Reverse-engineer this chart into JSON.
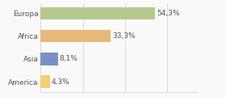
{
  "categories": [
    "Europa",
    "Africa",
    "Asia",
    "America"
  ],
  "values": [
    54.3,
    33.3,
    8.1,
    4.3
  ],
  "labels": [
    "54,3%",
    "33,3%",
    "8,1%",
    "4,3%"
  ],
  "bar_colors": [
    "#b5c98e",
    "#e8b87a",
    "#7b8fc4",
    "#f0d070"
  ],
  "background_color": "#f9f9f9",
  "xlim": [
    0,
    75
  ],
  "label_fontsize": 6.5,
  "tick_fontsize": 6.5,
  "bar_height": 0.55
}
